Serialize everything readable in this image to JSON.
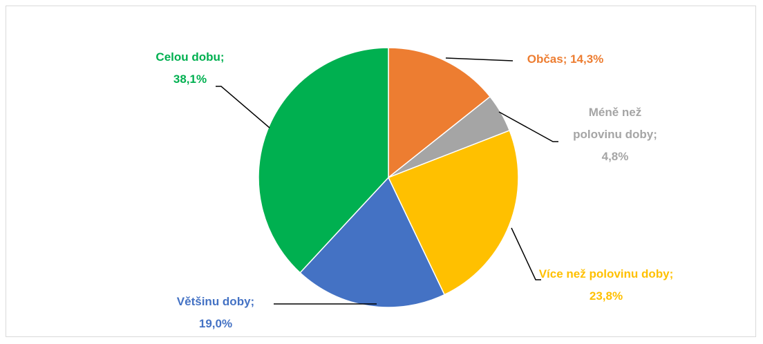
{
  "chart_data": {
    "type": "pie",
    "values": [
      14.3,
      4.8,
      23.8,
      19.0,
      38.1
    ],
    "value_labels": [
      "Občas; 14,3%",
      "Méně než polovinu doby; 4,8%",
      "Více než polovinu doby; 23,8%",
      "Většinu doby; 19,0%",
      "Celou dobu; 38,1%"
    ],
    "colors": [
      "#ED7D31",
      "#A5A5A5",
      "#FFC000",
      "#4472C4",
      "#00B050"
    ]
  }
}
